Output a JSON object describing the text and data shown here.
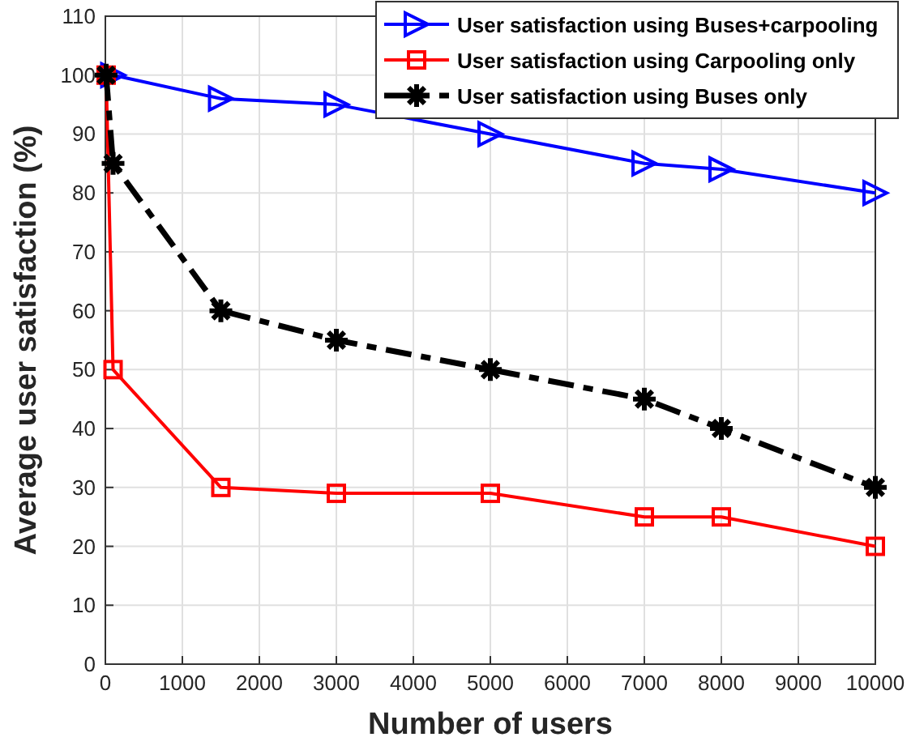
{
  "chart_data": {
    "type": "line",
    "xlabel": "Number of users",
    "ylabel": "Average user satisfaction (%)",
    "xlim": [
      0,
      10000
    ],
    "xticks": [
      0,
      1000,
      2000,
      3000,
      4000,
      5000,
      6000,
      7000,
      8000,
      9000,
      10000
    ],
    "ylim": [
      0,
      110
    ],
    "yticks": [
      0,
      10,
      20,
      30,
      40,
      50,
      60,
      70,
      80,
      90,
      100,
      110
    ],
    "grid": true,
    "legend": "top right",
    "series": [
      {
        "name": "User satisfaction using Buses+carpooling",
        "color": "#0000ff",
        "marker": "triangle",
        "line_style": "solid",
        "x": [
          100,
          1500,
          3000,
          5000,
          7000,
          8000,
          10000
        ],
        "values": [
          100,
          96,
          95,
          90,
          85,
          84,
          80
        ]
      },
      {
        "name": "User satisfaction using Carpooling only",
        "color": "#ff0000",
        "marker": "square",
        "line_style": "solid",
        "x": [
          10,
          100,
          1500,
          3000,
          5000,
          7000,
          8000,
          10000
        ],
        "values": [
          100,
          50,
          30,
          29,
          29,
          25,
          25,
          20
        ]
      },
      {
        "name": "User satisfaction using Buses only",
        "color": "#000000",
        "marker": "cross",
        "line_style": "dashed",
        "x": [
          10,
          100,
          1500,
          3000,
          5000,
          7000,
          8000,
          10000
        ],
        "values": [
          100,
          85,
          60,
          55,
          50,
          45,
          40,
          30
        ]
      }
    ]
  }
}
